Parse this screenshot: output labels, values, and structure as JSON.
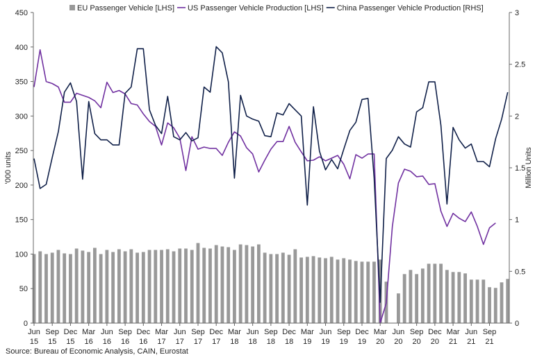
{
  "chart_data": {
    "type": "bar+line",
    "source": "Source: Bureau of Economic Analysis, CAIN, Eurostat",
    "y_left": {
      "label": "'000 units",
      "range": [
        0,
        450
      ],
      "ticks": [
        "0",
        "50",
        "100",
        "150",
        "200",
        "250",
        "300",
        "350",
        "400",
        "450"
      ]
    },
    "y_right": {
      "label": "Million Units",
      "range": [
        0,
        3
      ],
      "ticks": [
        "0",
        "0.5",
        "1",
        "1.5",
        "2",
        "2.5",
        "3"
      ]
    },
    "x_ticks": [
      {
        "i": 0,
        "m": "Jun",
        "y": "15"
      },
      {
        "i": 3,
        "m": "Sep",
        "y": "15"
      },
      {
        "i": 6,
        "m": "Dec",
        "y": "15"
      },
      {
        "i": 9,
        "m": "Mar",
        "y": "16"
      },
      {
        "i": 12,
        "m": "Jun",
        "y": "16"
      },
      {
        "i": 15,
        "m": "Sep",
        "y": "16"
      },
      {
        "i": 18,
        "m": "Dec",
        "y": "16"
      },
      {
        "i": 21,
        "m": "Mar",
        "y": "17"
      },
      {
        "i": 24,
        "m": "Jun",
        "y": "17"
      },
      {
        "i": 27,
        "m": "Sep",
        "y": "17"
      },
      {
        "i": 30,
        "m": "Dec",
        "y": "17"
      },
      {
        "i": 33,
        "m": "Mar",
        "y": "18"
      },
      {
        "i": 36,
        "m": "Jun",
        "y": "18"
      },
      {
        "i": 39,
        "m": "Sep",
        "y": "18"
      },
      {
        "i": 42,
        "m": "Dec",
        "y": "18"
      },
      {
        "i": 45,
        "m": "Mar",
        "y": "19"
      },
      {
        "i": 48,
        "m": "Jun",
        "y": "19"
      },
      {
        "i": 51,
        "m": "Sep",
        "y": "19"
      },
      {
        "i": 54,
        "m": "Dec",
        "y": "19"
      },
      {
        "i": 57,
        "m": "Mar",
        "y": "20"
      },
      {
        "i": 60,
        "m": "Jun",
        "y": "20"
      },
      {
        "i": 63,
        "m": "Sep",
        "y": "20"
      },
      {
        "i": 66,
        "m": "Dec",
        "y": "20"
      },
      {
        "i": 69,
        "m": "Mar",
        "y": "21"
      },
      {
        "i": 72,
        "m": "Jun",
        "y": "21"
      },
      {
        "i": 75,
        "m": "Sep",
        "y": "21"
      }
    ],
    "series": [
      {
        "name": "EU Passenger Vehicle [LHS]",
        "kind": "bar",
        "axis": "left",
        "color": "#999999",
        "values": [
          100,
          104,
          100,
          102,
          106,
          101,
          100,
          108,
          105,
          103,
          109,
          100,
          106,
          103,
          107,
          104,
          107,
          102,
          103,
          106,
          106,
          106,
          107,
          104,
          108,
          108,
          106,
          116,
          109,
          108,
          113,
          111,
          110,
          106,
          114,
          113,
          111,
          114,
          102,
          100,
          100,
          102,
          99,
          107,
          95,
          96,
          97,
          95,
          94,
          96,
          92,
          94,
          92,
          90,
          89,
          89,
          89,
          92,
          60,
          0,
          43,
          71,
          77,
          71,
          79,
          86,
          86,
          86,
          77,
          74,
          74,
          72,
          63,
          63,
          63,
          52,
          51,
          59,
          64
        ]
      },
      {
        "name": "US Passenger Vehicle Production [LHS]",
        "kind": "line",
        "axis": "left",
        "color": "#7030a0",
        "values": [
          342,
          396,
          350,
          347,
          342,
          320,
          320,
          333,
          330,
          327,
          322,
          312,
          349,
          334,
          337,
          332,
          318,
          316,
          303,
          292,
          285,
          258,
          290,
          283,
          268,
          221,
          270,
          252,
          255,
          253,
          253,
          243,
          262,
          277,
          271,
          254,
          245,
          219,
          236,
          252,
          263,
          263,
          285,
          262,
          248,
          235,
          236,
          241,
          235,
          239,
          243,
          230,
          209,
          244,
          239,
          245,
          245,
          0,
          29,
          140,
          203,
          223,
          220,
          212,
          213,
          201,
          202,
          162,
          140,
          159,
          152,
          147,
          161,
          140,
          114,
          138,
          145
        ]
      },
      {
        "name": "China Passenger Vehicle Production [RHS]",
        "kind": "line",
        "axis": "right",
        "color": "#0f1f48",
        "values": [
          1.59,
          1.3,
          1.34,
          1.6,
          1.85,
          2.23,
          2.32,
          2.14,
          1.39,
          2.14,
          1.83,
          1.77,
          1.77,
          1.72,
          1.72,
          2.22,
          2.28,
          2.65,
          2.65,
          2.06,
          1.91,
          1.83,
          2.19,
          1.8,
          1.77,
          1.84,
          1.76,
          1.79,
          2.28,
          2.23,
          2.67,
          2.61,
          2.33,
          1.4,
          2.2,
          2.0,
          1.97,
          1.95,
          1.81,
          1.8,
          2.03,
          2.01,
          2.12,
          2.06,
          2.0,
          1.14,
          2.09,
          1.66,
          1.48,
          1.58,
          1.49,
          1.68,
          1.86,
          1.94,
          2.16,
          2.17,
          1.4,
          0.2,
          1.59,
          1.67,
          1.8,
          1.73,
          1.7,
          2.04,
          2.08,
          2.33,
          2.33,
          1.91,
          1.15,
          1.89,
          1.77,
          1.69,
          1.73,
          1.56,
          1.56,
          1.51,
          1.78,
          1.97,
          2.23
        ]
      }
    ]
  }
}
